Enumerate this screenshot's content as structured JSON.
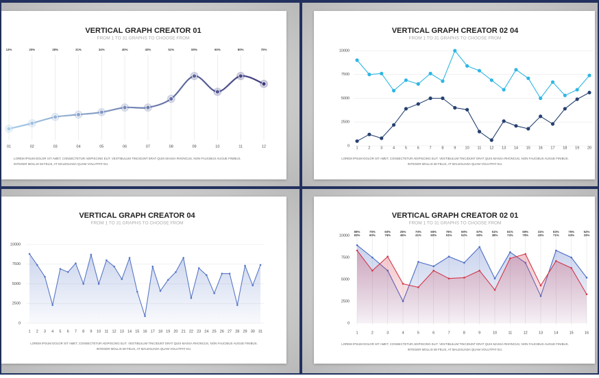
{
  "chart_data": [
    {
      "type": "line",
      "title": "VERTICAL GRAPH CREATOR 01",
      "subtitle": "FROM 1 TO 31 GRAPHS TO CHOOSE FROM",
      "categories": [
        "01",
        "02",
        "03",
        "04",
        "05",
        "06",
        "07",
        "08",
        "09",
        "10",
        "11",
        "12"
      ],
      "series": [
        {
          "color": "#3e3a7c",
          "values": [
            13,
            20,
            28,
            31,
            34,
            40,
            40,
            51,
            80,
            60,
            80,
            70
          ],
          "value_labels": [
            "13%",
            "20%",
            "28%",
            "31%",
            "34%",
            "40%",
            "40%",
            "51%",
            "80%",
            "60%",
            "80%",
            "70%"
          ]
        }
      ],
      "gradient_start": "#a9cdea",
      "ylim": [
        0,
        100
      ],
      "grid": "x",
      "smooth": true,
      "area": false,
      "footer": [
        "LOREM IPSUM DOLOR SIT AMET, CONSECTETUR ADIPISCING ELIT. VESTIBULUM TINCIDUNT ERAT QUIS MASSA RHONCUS, NON FAUCIBUS AUGUE FINIBUS.",
        "INTEGER MOLLIS MI FELIS, AT MALESUADA QUAM VOLUTPAT EU."
      ]
    },
    {
      "type": "line",
      "title": "VERTICAL GRAPH CREATOR 02 04",
      "subtitle": "FROM 1 TO 31 GRAPHS TO CHOOSE FROM",
      "categories": [
        1,
        2,
        3,
        4,
        5,
        6,
        7,
        8,
        9,
        10,
        11,
        12,
        13,
        14,
        15,
        16,
        17,
        18,
        19,
        20
      ],
      "series": [
        {
          "color": "#2fb7e4",
          "values": [
            9000,
            7500,
            7600,
            5800,
            6900,
            6500,
            7600,
            6800,
            10000,
            8400,
            7900,
            6900,
            5900,
            8000,
            7100,
            5000,
            6700,
            5300,
            5900,
            7400
          ]
        },
        {
          "color": "#26406f",
          "values": [
            500,
            1200,
            800,
            2200,
            3900,
            4400,
            5000,
            5000,
            4000,
            3800,
            1500,
            600,
            2600,
            2100,
            1800,
            3100,
            2300,
            3900,
            4900,
            5600
          ]
        }
      ],
      "ylim": [
        0,
        10000
      ],
      "yticks": [
        0,
        2500,
        5000,
        7500,
        10000
      ],
      "grid": "y",
      "smooth": false,
      "area": false,
      "footer": [
        "LOREM IPSUM DOLOR SIT AMET, CONSECTETUR ADIPISCING ELIT. VESTIBULUM TINCIDUNT ERAT QUIS MASSA RHONCUS, NON FAUCIBUS AUGUE FINIBUS.",
        "INTEGER MOLLIS MI FELIS, AT MALESUADA QUAM VOLUTPAT EU."
      ]
    },
    {
      "type": "line",
      "title": "VERTICAL GRAPH CREATOR 04",
      "subtitle": "FROM 1 TO 31 GRAPHS TO CHOOSE FROM",
      "categories": [
        1,
        2,
        3,
        4,
        5,
        6,
        7,
        8,
        9,
        10,
        11,
        12,
        13,
        14,
        15,
        16,
        17,
        18,
        19,
        20,
        21,
        22,
        23,
        24,
        25,
        26,
        27,
        28,
        29,
        30,
        31
      ],
      "series": [
        {
          "color": "#5877c6",
          "values": [
            8800,
            7400,
            5900,
            2300,
            6900,
            6500,
            7600,
            5000,
            8700,
            5000,
            8000,
            7200,
            5600,
            8300,
            4000,
            900,
            7200,
            4100,
            5500,
            6500,
            8300,
            3200,
            7000,
            6100,
            3800,
            6300,
            6300,
            2300,
            7300,
            4800,
            7400
          ]
        }
      ],
      "ylim": [
        0,
        10000
      ],
      "yticks": [
        0,
        2500,
        5000,
        7500,
        10000
      ],
      "grid": "y",
      "smooth": false,
      "area": true,
      "footer": [
        "LOREM IPSUM DOLOR SIT AMET, CONSECTETUR ADIPISCING ELIT. VESTIBULUM TINCIDUNT ERAT QUIS MASSA RHONCUS, NON FAUCIBUS AUGUE FINIBUS.",
        "INTEGER MOLLIS MI FELIS, AT MALESUADA QUAM VOLUTPAT EU."
      ]
    },
    {
      "type": "line",
      "title": "VERTICAL GRAPH CREATOR 02 01",
      "subtitle": "FROM 1 TO 31 GRAPHS TO CHOOSE FROM",
      "categories": [
        1,
        2,
        3,
        4,
        5,
        6,
        7,
        8,
        9,
        10,
        11,
        12,
        13,
        14,
        15,
        16
      ],
      "series": [
        {
          "color": "#4a6bc4",
          "values": [
            8900,
            7500,
            6000,
            2500,
            7000,
            6500,
            7600,
            6900,
            8700,
            5100,
            8100,
            6900,
            3100,
            8300,
            7500,
            5200
          ],
          "value_labels": [
            "89%",
            "75%",
            "60%",
            "25%",
            "70%",
            "65%",
            "76%",
            "69%",
            "87%",
            "51%",
            "81%",
            "69%",
            "31%",
            "83%",
            "75%",
            "52%"
          ]
        },
        {
          "color": "#d2374a",
          "values": [
            8300,
            6000,
            7600,
            4500,
            4100,
            6000,
            5100,
            5200,
            6000,
            3800,
            7400,
            7900,
            4300,
            7100,
            6300,
            3300
          ],
          "value_labels": [
            "83%",
            "60%",
            "76%",
            "45%",
            "41%",
            "60%",
            "51%",
            "52%",
            "60%",
            "38%",
            "74%",
            "79%",
            "43%",
            "71%",
            "63%",
            "33%"
          ]
        }
      ],
      "ylim": [
        0,
        10000
      ],
      "yticks": [
        0,
        2500,
        5000,
        7500,
        10000
      ],
      "grid": "x",
      "smooth": false,
      "area": true,
      "footer": [
        "LOREM IPSUM DOLOR SIT AMET, CONSECTETUR ADIPISCING ELIT. VESTIBULUM TINCIDUNT ERAT QUIS MASSA RHONCUS, NON FAUCIBUS AUGUE FINIBUS.",
        "INTEGER MOLLIS MI FELIS, AT MALESUADA QUAM VOLUTPAT EU."
      ]
    }
  ]
}
